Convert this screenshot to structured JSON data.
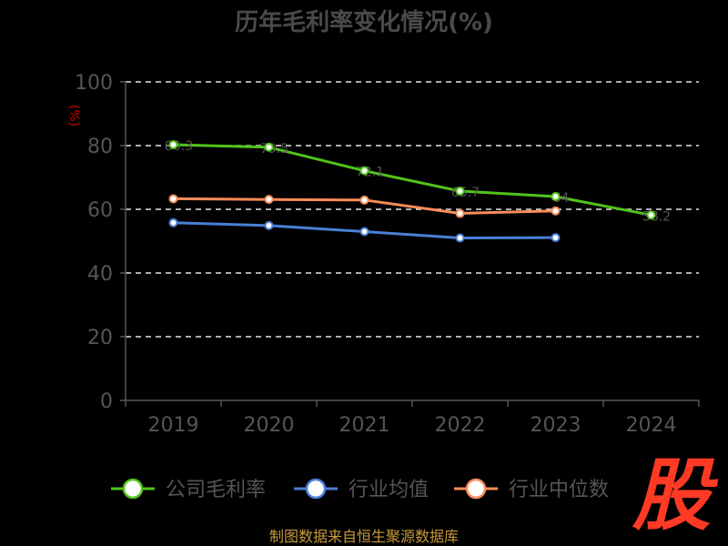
{
  "chart_data": {
    "type": "line",
    "title": "历年毛利率变化情况(%)",
    "unit_label": "(%)",
    "categories": [
      "2019",
      "2020",
      "2021",
      "2022",
      "2023",
      "2024"
    ],
    "ylim": [
      0,
      100
    ],
    "yticks": [
      0,
      20,
      40,
      60,
      80,
      100
    ],
    "grid": true,
    "legend_position": "bottom",
    "series": [
      {
        "name": "公司毛利率",
        "color": "#52c41a",
        "values": [
          80.3,
          79.5,
          72.1,
          65.7,
          64.0,
          58.2
        ]
      },
      {
        "name": "行业均值",
        "color": "#4a7fd8",
        "values": [
          55.8,
          54.9,
          53.0,
          51.0,
          51.1,
          null
        ]
      },
      {
        "name": "行业中位数",
        "color": "#fa8c5a",
        "values": [
          63.3,
          63.1,
          62.9,
          58.7,
          59.5,
          null
        ]
      }
    ]
  },
  "source_text": "制图数据来自恒生聚源数据库",
  "logo_text": "股"
}
